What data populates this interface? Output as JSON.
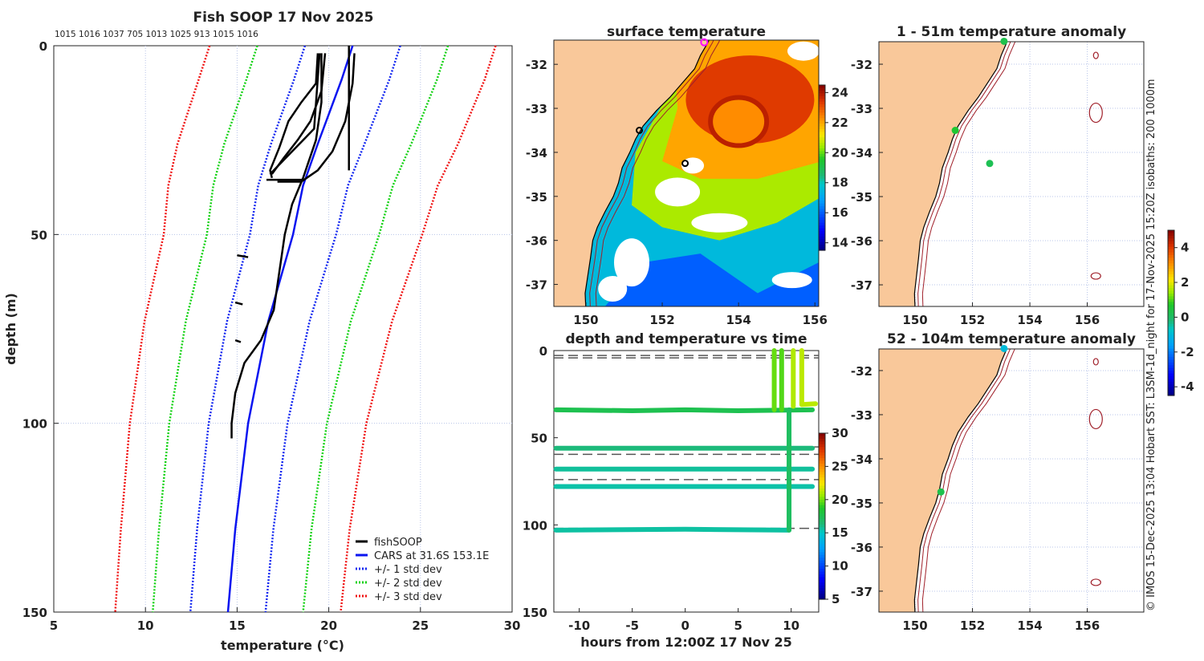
{
  "figure": {
    "title": "Fish SOOP 17 Nov 2025",
    "profile_ids": "1015 1016 1037 705 1013 1025 913 1015 1016",
    "credit": "© IMOS 15-Dec-2025 13:04 Hobart SST: L3SM-1d_night for 17-Nov-2025 15:20Z isobaths: 200  1000m",
    "track_id": "4864"
  },
  "chart_data": [
    {
      "type": "line",
      "title": "Fish SOOP 17 Nov 2025",
      "xlabel": "temperature (°C)",
      "ylabel": "depth (m)",
      "xlim": [
        5,
        30
      ],
      "ylim": [
        150,
        0
      ],
      "xticks": [
        5,
        10,
        15,
        20,
        25,
        30
      ],
      "yticks": [
        0,
        50,
        100,
        150
      ],
      "grid": true,
      "legend_position": "bottom-right",
      "legend": [
        "fishSOOP",
        "CARS at 31.6S 153.1E",
        "+/- 1 std dev",
        "+/- 2 std dev",
        "+/- 3 std dev"
      ],
      "colors": {
        "fishSOOP": "#000000",
        "CARS": "#0a14f0",
        "std1": "#1428f0",
        "std2": "#14d214",
        "std3": "#f01414"
      },
      "cars": {
        "depth": [
          0,
          9,
          26,
          37,
          50,
          73,
          100,
          128,
          150
        ],
        "temp": [
          21.3,
          20.7,
          19.4,
          18.6,
          18.05,
          16.7,
          15.6,
          14.9,
          14.5
        ],
        "std": [
          2.6,
          2.6,
          2.55,
          2.45,
          2.35,
          2.25,
          2.15,
          2.08,
          2.05
        ]
      },
      "fishsoop_profiles": [
        [
          [
            19.6,
            2
          ],
          [
            19.6,
            15
          ],
          [
            19.3,
            25
          ],
          [
            18.6,
            35
          ],
          [
            18.0,
            42
          ],
          [
            17.6,
            50
          ],
          [
            17.3,
            60
          ],
          [
            17.0,
            70
          ],
          [
            16.3,
            78
          ],
          [
            15.4,
            84
          ],
          [
            14.9,
            92
          ],
          [
            14.7,
            100
          ],
          [
            14.7,
            104
          ]
        ],
        [
          [
            19.4,
            2
          ],
          [
            19.3,
            10
          ],
          [
            18.5,
            15
          ],
          [
            17.8,
            20
          ],
          [
            17.3,
            27
          ],
          [
            16.8,
            33
          ],
          [
            16.9,
            35
          ]
        ],
        [
          [
            19.8,
            2
          ],
          [
            19.6,
            12
          ],
          [
            19.0,
            20
          ],
          [
            18.3,
            25
          ],
          [
            17.5,
            30
          ],
          [
            16.9,
            34
          ]
        ],
        [
          [
            21.4,
            2
          ],
          [
            21.3,
            10
          ],
          [
            20.9,
            20
          ],
          [
            20.2,
            28
          ],
          [
            19.4,
            33
          ],
          [
            18.5,
            36
          ],
          [
            17.2,
            36
          ]
        ],
        [
          [
            21.1,
            0
          ],
          [
            21.1,
            33
          ]
        ],
        [
          [
            19.5,
            2
          ],
          [
            19.2,
            22
          ],
          [
            18.0,
            28
          ],
          [
            16.8,
            34
          ]
        ],
        [
          [
            16.6,
            35.5
          ],
          [
            18.7,
            35.5
          ]
        ],
        [
          [
            15.0,
            55.5
          ],
          [
            15.6,
            56
          ]
        ],
        [
          [
            14.9,
            68
          ],
          [
            15.3,
            68.5
          ]
        ],
        [
          [
            14.9,
            78
          ],
          [
            15.2,
            78.5
          ]
        ]
      ]
    },
    {
      "type": "heatmap",
      "title": "surface temperature",
      "xticks": [
        150,
        152,
        154,
        156
      ],
      "yticks": [
        -32,
        -33,
        -34,
        -35,
        -36,
        -37
      ],
      "colorbar": {
        "ticks": [
          14,
          16,
          18,
          20,
          22,
          24
        ],
        "range": [
          13.5,
          24.5
        ]
      },
      "stations": [
        {
          "lon": 153.1,
          "lat": -31.5,
          "style": "magenta"
        },
        {
          "lon": 151.4,
          "lat": -33.5,
          "style": "black"
        },
        {
          "lon": 152.6,
          "lat": -34.25,
          "style": "black"
        }
      ]
    },
    {
      "type": "scatter",
      "title": "depth and temperature vs time",
      "xlabel": "hours from 12:00Z 17 Nov 25",
      "xlim": [
        -12.4,
        12.6
      ],
      "ylim": [
        150,
        0
      ],
      "xticks": [
        -10,
        -5,
        0,
        5,
        10
      ],
      "yticks": [
        0,
        50,
        100,
        150
      ],
      "colorbar": {
        "ticks": [
          5,
          10,
          15,
          20,
          25,
          30
        ],
        "range": [
          5,
          30
        ]
      },
      "dashed_depths": [
        2.8,
        4.2,
        55.3,
        59.5,
        74,
        102
      ],
      "tracks": [
        {
          "points": [
            [
              -12.2,
              34
            ],
            [
              -5,
              34.5
            ],
            [
              0,
              34
            ],
            [
              5,
              34.5
            ],
            [
              12,
              34
            ]
          ],
          "temp": 17.5
        },
        {
          "points": [
            [
              -12.2,
              56
            ],
            [
              12,
              56
            ]
          ],
          "temp": 16.2
        },
        {
          "points": [
            [
              -12.2,
              68
            ],
            [
              12,
              68
            ]
          ],
          "temp": 15.7
        },
        {
          "points": [
            [
              -12.2,
              78
            ],
            [
              12,
              78
            ]
          ],
          "temp": 15.5
        },
        {
          "points": [
            [
              -12.2,
              103
            ],
            [
              0,
              102.5
            ],
            [
              9.8,
              103
            ]
          ],
          "temp": 15.6
        },
        {
          "points": [
            [
              9.8,
              34
            ],
            [
              9.8,
              103
            ]
          ],
          "temp": 17
        },
        {
          "points": [
            [
              8.4,
              0
            ],
            [
              8.4,
              34
            ]
          ],
          "temp": 19.8
        },
        {
          "points": [
            [
              9.1,
              0
            ],
            [
              9.1,
              34
            ]
          ],
          "temp": 19.5
        },
        {
          "points": [
            [
              10.2,
              0
            ],
            [
              10.2,
              32
            ]
          ],
          "temp": 21
        },
        {
          "points": [
            [
              11.0,
              0
            ],
            [
              11.0,
              31
            ],
            [
              12.3,
              30.5
            ]
          ],
          "temp": 21.2
        }
      ]
    },
    {
      "type": "scatter",
      "title": "1 - 51m temperature anomaly",
      "xticks": [
        150,
        152,
        154,
        156
      ],
      "yticks": [
        -32,
        -33,
        -34,
        -35,
        -36,
        -37
      ],
      "colorbar": {
        "ticks": [
          4,
          2,
          0,
          -2,
          -4
        ],
        "range": [
          -4.5,
          5
        ]
      },
      "points": [
        {
          "lon": 153.1,
          "lat": -31.48,
          "anom": 0.3
        },
        {
          "lon": 151.4,
          "lat": -33.5,
          "anom": 0.6
        },
        {
          "lon": 152.6,
          "lat": -34.25,
          "anom": 0.2
        }
      ]
    },
    {
      "type": "scatter",
      "title": "52 - 104m temperature anomaly",
      "xticks": [
        150,
        152,
        154,
        156
      ],
      "yticks": [
        -32,
        -33,
        -34,
        -35,
        -36,
        -37
      ],
      "points": [
        {
          "lon": 153.1,
          "lat": -31.5,
          "anom": -1.0
        },
        {
          "lon": 150.9,
          "lat": -34.75,
          "anom": 0.3
        }
      ]
    }
  ],
  "coastline": [
    [
      153.3,
      -31.3
    ],
    [
      153.2,
      -31.5
    ],
    [
      153.0,
      -31.8
    ],
    [
      152.85,
      -32.1
    ],
    [
      152.5,
      -32.45
    ],
    [
      152.2,
      -32.75
    ],
    [
      151.85,
      -33.05
    ],
    [
      151.5,
      -33.4
    ],
    [
      151.3,
      -33.7
    ],
    [
      151.15,
      -34.0
    ],
    [
      150.95,
      -34.35
    ],
    [
      150.85,
      -34.7
    ],
    [
      150.72,
      -35.0
    ],
    [
      150.5,
      -35.35
    ],
    [
      150.3,
      -35.7
    ],
    [
      150.18,
      -36.0
    ],
    [
      150.12,
      -36.4
    ],
    [
      150.05,
      -36.8
    ],
    [
      149.98,
      -37.2
    ],
    [
      150.0,
      -37.6
    ],
    [
      150.05,
      -38
    ]
  ]
}
